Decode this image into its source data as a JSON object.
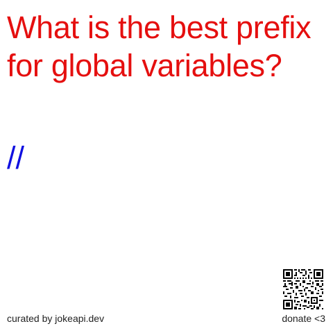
{
  "joke": {
    "question": "What is the best prefix for global variables?",
    "answer": "//"
  },
  "footer": {
    "credit": "curated by jokeapi.dev",
    "donate": "donate <3"
  },
  "colors": {
    "question": "#e50f0f",
    "answer": "#1010e0",
    "footer": "#222222"
  },
  "icons": {
    "qr": "qr-code-icon"
  }
}
